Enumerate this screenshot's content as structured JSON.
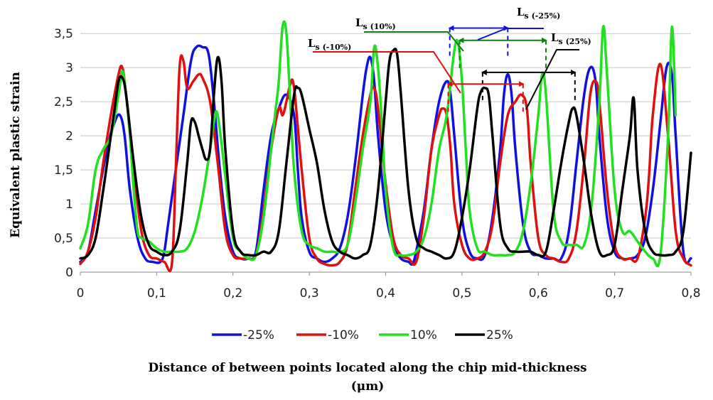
{
  "chart_data": {
    "type": "line",
    "ylabel": "Equivalent plastic strain",
    "xlabel_line1": "Distance of between points located along the chip mid-thickness",
    "xlabel_line2": "(μm)",
    "xlim": [
      0,
      0.8
    ],
    "ylim": [
      0,
      3.7
    ],
    "x_ticks": [
      "0",
      "0,1",
      "0,2",
      "0,3",
      "0,4",
      "0,5",
      "0,6",
      "0,7",
      "0,8"
    ],
    "y_ticks": [
      "0",
      "0,5",
      "1",
      "1,5",
      "2",
      "2,5",
      "3",
      "3,5"
    ],
    "grid": "horizontal",
    "legend_position": "bottom",
    "series": [
      {
        "name": "-25%",
        "color": "#1010e0",
        "x": [
          0,
          0.01,
          0.02,
          0.035,
          0.045,
          0.052,
          0.058,
          0.065,
          0.075,
          0.085,
          0.095,
          0.105,
          0.11,
          0.115,
          0.125,
          0.135,
          0.145,
          0.152,
          0.16,
          0.168,
          0.175,
          0.182,
          0.19,
          0.2,
          0.21,
          0.22,
          0.23,
          0.24,
          0.25,
          0.26,
          0.27,
          0.28,
          0.285,
          0.29,
          0.3,
          0.31,
          0.32,
          0.33,
          0.34,
          0.35,
          0.36,
          0.37,
          0.375,
          0.38,
          0.385,
          0.39,
          0.4,
          0.41,
          0.42,
          0.43,
          0.435,
          0.44,
          0.45,
          0.46,
          0.47,
          0.48,
          0.485,
          0.49,
          0.5,
          0.51,
          0.52,
          0.53,
          0.54,
          0.55,
          0.555,
          0.56,
          0.565,
          0.57,
          0.58,
          0.59,
          0.6,
          0.61,
          0.62,
          0.63,
          0.64,
          0.65,
          0.66,
          0.668,
          0.675,
          0.68,
          0.69,
          0.7,
          0.71,
          0.72,
          0.73,
          0.74,
          0.75,
          0.76,
          0.768,
          0.775,
          0.78,
          0.79,
          0.8
        ],
        "y": [
          0.15,
          0.3,
          0.9,
          1.8,
          2.2,
          2.3,
          2.0,
          1.2,
          0.5,
          0.2,
          0.15,
          0.15,
          0.3,
          0.7,
          1.5,
          2.3,
          3.1,
          3.3,
          3.3,
          3.2,
          2.5,
          1.6,
          0.8,
          0.3,
          0.2,
          0.2,
          0.3,
          1.2,
          2.0,
          2.4,
          2.6,
          2.3,
          1.5,
          0.8,
          0.3,
          0.2,
          0.15,
          0.2,
          0.35,
          0.8,
          1.6,
          2.6,
          3.0,
          3.15,
          2.8,
          2.0,
          0.9,
          0.4,
          0.2,
          0.15,
          0.12,
          0.3,
          0.9,
          1.8,
          2.5,
          2.8,
          2.6,
          2.0,
          0.8,
          0.3,
          0.2,
          0.25,
          0.8,
          1.8,
          2.6,
          2.9,
          2.6,
          1.8,
          0.7,
          0.3,
          0.25,
          0.2,
          0.2,
          0.2,
          0.6,
          1.6,
          2.6,
          3.0,
          2.8,
          2.0,
          0.8,
          0.3,
          0.2,
          0.2,
          0.25,
          0.5,
          1.2,
          2.2,
          3.0,
          2.9,
          2.0,
          0.3,
          0.2
        ]
      },
      {
        "name": "-10%",
        "color": "#e01010",
        "x": [
          0,
          0.01,
          0.02,
          0.03,
          0.04,
          0.05,
          0.055,
          0.06,
          0.07,
          0.08,
          0.09,
          0.1,
          0.11,
          0.12,
          0.125,
          0.13,
          0.135,
          0.14,
          0.148,
          0.155,
          0.16,
          0.17,
          0.18,
          0.19,
          0.2,
          0.21,
          0.22,
          0.23,
          0.24,
          0.25,
          0.26,
          0.265,
          0.27,
          0.275,
          0.28,
          0.29,
          0.3,
          0.31,
          0.32,
          0.33,
          0.34,
          0.35,
          0.36,
          0.37,
          0.38,
          0.385,
          0.39,
          0.4,
          0.41,
          0.42,
          0.43,
          0.44,
          0.45,
          0.46,
          0.47,
          0.475,
          0.48,
          0.485,
          0.49,
          0.5,
          0.51,
          0.52,
          0.53,
          0.54,
          0.55,
          0.56,
          0.57,
          0.578,
          0.585,
          0.59,
          0.6,
          0.61,
          0.62,
          0.63,
          0.64,
          0.65,
          0.66,
          0.668,
          0.675,
          0.68,
          0.69,
          0.7,
          0.71,
          0.72,
          0.73,
          0.74,
          0.745,
          0.75,
          0.76,
          0.77,
          0.78,
          0.79,
          0.8
        ],
        "y": [
          0.12,
          0.3,
          0.8,
          1.6,
          2.3,
          2.9,
          3.0,
          2.6,
          1.5,
          0.6,
          0.25,
          0.2,
          0.15,
          0.12,
          1.5,
          3.0,
          3.1,
          2.7,
          2.8,
          2.9,
          2.85,
          2.5,
          1.6,
          0.6,
          0.25,
          0.2,
          0.2,
          0.25,
          0.9,
          1.8,
          2.4,
          2.3,
          2.5,
          2.75,
          2.7,
          1.5,
          0.5,
          0.2,
          0.12,
          0.1,
          0.15,
          0.4,
          1.2,
          2.0,
          2.6,
          2.7,
          2.4,
          1.3,
          0.5,
          0.25,
          0.2,
          0.15,
          0.8,
          1.8,
          2.3,
          2.4,
          2.3,
          1.8,
          1.0,
          0.4,
          0.2,
          0.2,
          0.3,
          0.7,
          1.6,
          2.3,
          2.5,
          2.6,
          2.4,
          1.6,
          0.5,
          0.25,
          0.2,
          0.15,
          0.2,
          0.6,
          1.6,
          2.6,
          2.8,
          2.5,
          1.2,
          0.4,
          0.2,
          0.2,
          0.2,
          0.8,
          1.4,
          2.3,
          3.05,
          2.0,
          0.6,
          0.2,
          0.1
        ]
      },
      {
        "name": "10%",
        "color": "#20e020",
        "x": [
          0,
          0.01,
          0.02,
          0.03,
          0.04,
          0.05,
          0.055,
          0.06,
          0.065,
          0.07,
          0.075,
          0.08,
          0.09,
          0.1,
          0.11,
          0.12,
          0.13,
          0.14,
          0.15,
          0.16,
          0.17,
          0.175,
          0.18,
          0.19,
          0.2,
          0.21,
          0.22,
          0.23,
          0.24,
          0.25,
          0.255,
          0.26,
          0.265,
          0.27,
          0.275,
          0.28,
          0.29,
          0.3,
          0.31,
          0.32,
          0.33,
          0.34,
          0.35,
          0.36,
          0.37,
          0.38,
          0.385,
          0.39,
          0.395,
          0.4,
          0.41,
          0.42,
          0.43,
          0.44,
          0.45,
          0.46,
          0.47,
          0.48,
          0.49,
          0.495,
          0.5,
          0.505,
          0.51,
          0.52,
          0.53,
          0.54,
          0.55,
          0.56,
          0.57,
          0.58,
          0.59,
          0.6,
          0.605,
          0.61,
          0.62,
          0.63,
          0.64,
          0.65,
          0.66,
          0.67,
          0.68,
          0.685,
          0.69,
          0.7,
          0.71,
          0.72,
          0.73,
          0.74,
          0.75,
          0.76,
          0.77,
          0.775,
          0.78
        ],
        "y": [
          0.35,
          0.7,
          1.5,
          1.8,
          2.0,
          2.6,
          2.95,
          2.6,
          2.0,
          1.2,
          0.6,
          0.5,
          0.45,
          0.35,
          0.3,
          0.3,
          0.3,
          0.35,
          0.6,
          1.1,
          1.8,
          2.2,
          2.3,
          1.4,
          0.5,
          0.3,
          0.2,
          0.25,
          0.8,
          1.8,
          2.3,
          2.8,
          3.6,
          3.5,
          2.5,
          1.5,
          0.6,
          0.4,
          0.35,
          0.3,
          0.3,
          0.3,
          0.4,
          1.0,
          1.8,
          2.5,
          3.3,
          3.0,
          2.2,
          1.2,
          0.35,
          0.25,
          0.25,
          0.3,
          0.5,
          1.0,
          1.8,
          2.3,
          3.25,
          3.35,
          2.8,
          1.8,
          0.9,
          0.35,
          0.3,
          0.25,
          0.25,
          0.25,
          0.3,
          0.6,
          1.3,
          2.3,
          2.9,
          2.6,
          0.9,
          0.45,
          0.4,
          0.4,
          0.4,
          1.0,
          2.5,
          3.6,
          2.9,
          1.2,
          0.6,
          0.6,
          0.45,
          0.3,
          0.2,
          0.25,
          2.0,
          3.6,
          2.3
        ]
      },
      {
        "name": "25%",
        "color": "#000000",
        "x": [
          0,
          0.01,
          0.02,
          0.03,
          0.04,
          0.045,
          0.05,
          0.055,
          0.06,
          0.07,
          0.08,
          0.09,
          0.1,
          0.11,
          0.12,
          0.13,
          0.14,
          0.145,
          0.15,
          0.155,
          0.16,
          0.165,
          0.17,
          0.175,
          0.18,
          0.185,
          0.19,
          0.2,
          0.21,
          0.22,
          0.23,
          0.24,
          0.25,
          0.26,
          0.27,
          0.28,
          0.285,
          0.29,
          0.3,
          0.31,
          0.32,
          0.33,
          0.34,
          0.35,
          0.36,
          0.37,
          0.38,
          0.39,
          0.4,
          0.405,
          0.41,
          0.415,
          0.42,
          0.43,
          0.44,
          0.45,
          0.46,
          0.47,
          0.48,
          0.49,
          0.5,
          0.51,
          0.52,
          0.525,
          0.53,
          0.535,
          0.54,
          0.55,
          0.56,
          0.57,
          0.58,
          0.59,
          0.6,
          0.61,
          0.62,
          0.63,
          0.64,
          0.645,
          0.65,
          0.66,
          0.67,
          0.68,
          0.69,
          0.7,
          0.71,
          0.72,
          0.725,
          0.73,
          0.74,
          0.75,
          0.76,
          0.77,
          0.78,
          0.79,
          0.8
        ],
        "y": [
          0.2,
          0.25,
          0.5,
          1.2,
          2.0,
          2.4,
          2.8,
          2.85,
          2.6,
          1.6,
          0.8,
          0.4,
          0.3,
          0.25,
          0.3,
          0.6,
          1.6,
          2.2,
          2.2,
          2.0,
          1.8,
          1.65,
          1.8,
          2.6,
          3.15,
          2.8,
          1.8,
          0.6,
          0.3,
          0.25,
          0.25,
          0.3,
          0.3,
          0.6,
          1.6,
          2.6,
          2.7,
          2.6,
          2.1,
          1.6,
          0.9,
          0.45,
          0.3,
          0.25,
          0.2,
          0.25,
          0.4,
          1.2,
          2.5,
          3.1,
          3.25,
          3.2,
          2.6,
          1.2,
          0.5,
          0.35,
          0.3,
          0.25,
          0.2,
          0.3,
          0.8,
          1.5,
          2.4,
          2.65,
          2.7,
          2.6,
          2.0,
          0.7,
          0.35,
          0.3,
          0.3,
          0.3,
          0.25,
          0.3,
          0.9,
          1.6,
          2.2,
          2.4,
          2.3,
          1.6,
          0.8,
          0.3,
          0.25,
          0.4,
          1.2,
          2.0,
          2.55,
          1.5,
          0.6,
          0.3,
          0.25,
          0.25,
          0.3,
          0.6,
          1.75
        ]
      }
    ],
    "annotations": [
      {
        "main": "L",
        "sub": "s (-25%)",
        "color": "#1010e0",
        "x_from": 0.484,
        "x_to": 0.56,
        "y": 3.58
      },
      {
        "main": "L",
        "sub": "s (10%)",
        "color": "#108010",
        "x_from": 0.497,
        "x_to": 0.61,
        "y": 3.4
      },
      {
        "main": "L",
        "sub": "s (25%)",
        "color": "#000000",
        "x_from": 0.527,
        "x_to": 0.648,
        "y": 2.93
      },
      {
        "main": "L",
        "sub": "s (-10%)",
        "color": "#e01010",
        "x_from": 0.482,
        "x_to": 0.58,
        "y": 2.76
      }
    ]
  }
}
